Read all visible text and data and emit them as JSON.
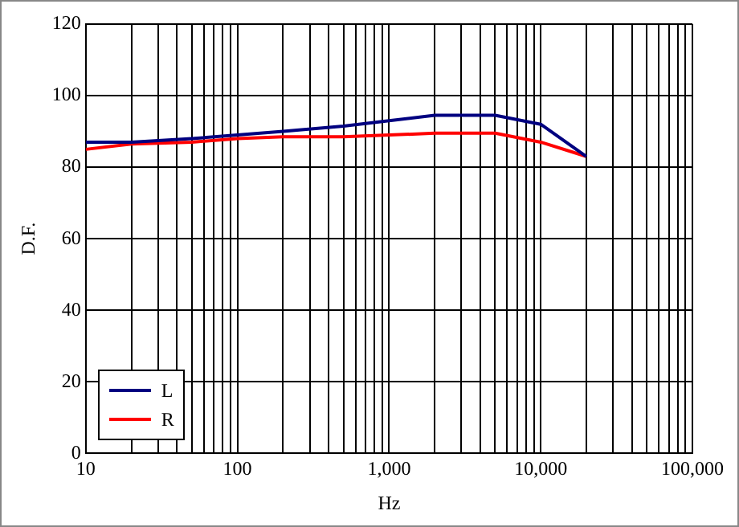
{
  "chart_data": {
    "type": "line",
    "xlabel": "Hz",
    "ylabel": "D.F.",
    "x": [
      10,
      20,
      50,
      100,
      200,
      500,
      1000,
      2000,
      5000,
      10000,
      20000
    ],
    "series": [
      {
        "name": "L",
        "color": "#000080",
        "values": [
          87,
          87,
          88,
          89,
          90,
          91.5,
          93,
          94.5,
          94.5,
          92,
          83
        ]
      },
      {
        "name": "R",
        "color": "#ff0000",
        "values": [
          85,
          86.5,
          87,
          88,
          88.5,
          88.5,
          89,
          89.5,
          89.5,
          87,
          83
        ]
      }
    ],
    "log": "x",
    "xlim": [
      10,
      100000
    ],
    "xticks": [
      {
        "value": 10,
        "label": "10"
      },
      {
        "value": 20,
        "label": null
      },
      {
        "value": 30,
        "label": null
      },
      {
        "value": 40,
        "label": null
      },
      {
        "value": 50,
        "label": null
      },
      {
        "value": 60,
        "label": null
      },
      {
        "value": 70,
        "label": null
      },
      {
        "value": 80,
        "label": null
      },
      {
        "value": 90,
        "label": null
      },
      {
        "value": 100,
        "label": "100"
      },
      {
        "value": 200,
        "label": null
      },
      {
        "value": 300,
        "label": null
      },
      {
        "value": 400,
        "label": null
      },
      {
        "value": 500,
        "label": null
      },
      {
        "value": 600,
        "label": null
      },
      {
        "value": 700,
        "label": null
      },
      {
        "value": 800,
        "label": null
      },
      {
        "value": 900,
        "label": null
      },
      {
        "value": 1000,
        "label": "1,000"
      },
      {
        "value": 2000,
        "label": null
      },
      {
        "value": 3000,
        "label": null
      },
      {
        "value": 4000,
        "label": null
      },
      {
        "value": 5000,
        "label": null
      },
      {
        "value": 6000,
        "label": null
      },
      {
        "value": 7000,
        "label": null
      },
      {
        "value": 8000,
        "label": null
      },
      {
        "value": 9000,
        "label": null
      },
      {
        "value": 10000,
        "label": "10,000"
      },
      {
        "value": 20000,
        "label": null
      },
      {
        "value": 30000,
        "label": null
      },
      {
        "value": 40000,
        "label": null
      },
      {
        "value": 50000,
        "label": null
      },
      {
        "value": 60000,
        "label": null
      },
      {
        "value": 70000,
        "label": null
      },
      {
        "value": 80000,
        "label": null
      },
      {
        "value": 90000,
        "label": null
      },
      {
        "value": 100000,
        "label": "100,000"
      }
    ],
    "ylim": [
      0,
      120
    ],
    "yticks": [
      0,
      20,
      40,
      60,
      80,
      100,
      120
    ],
    "grid": true,
    "legend": "bottom left",
    "marker": "none",
    "line_style": "solid"
  }
}
